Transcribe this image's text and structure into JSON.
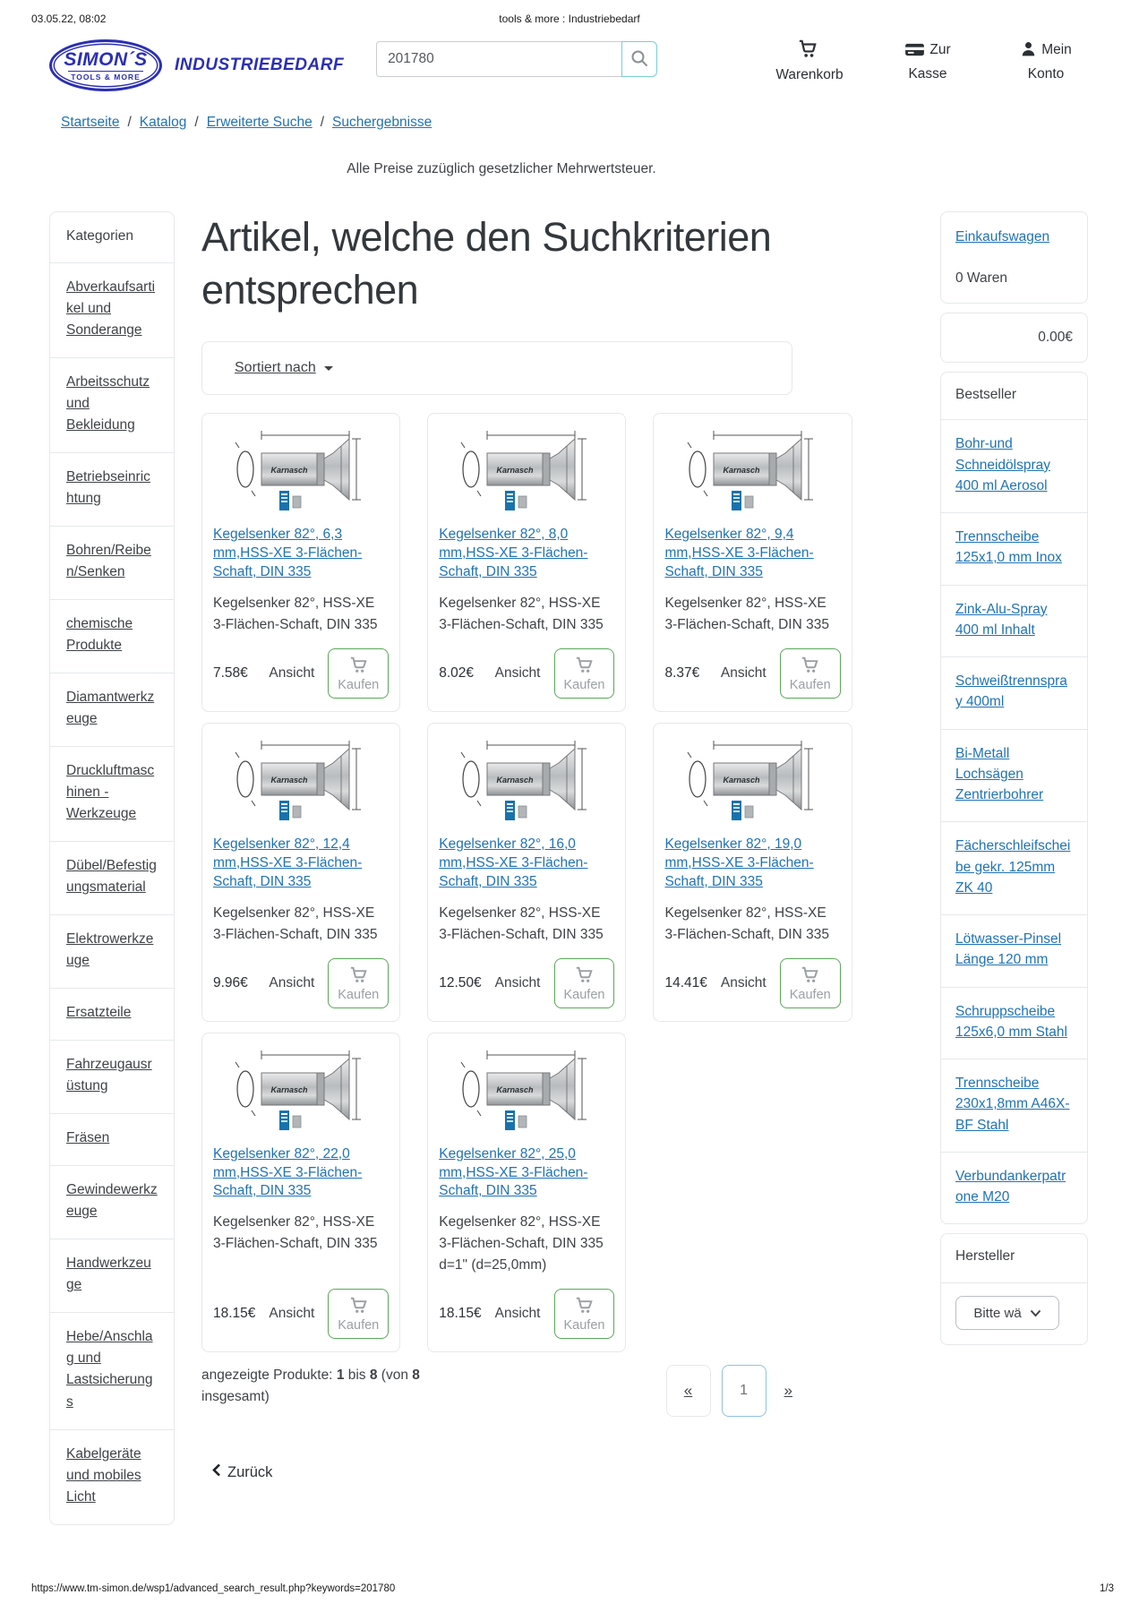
{
  "print": {
    "datetime": "03.05.22, 08:02",
    "doc_title": "tools & more : Industriebedarf",
    "url": "https://www.tm-simon.de/wsp1/advanced_search_result.php?keywords=201780",
    "page": "1/3"
  },
  "header": {
    "logo": {
      "name": "SIMON´S",
      "tagline": "TOOLS & MORE",
      "brand": "INDUSTRIEBEDARF"
    },
    "search": {
      "value": "201780"
    },
    "nav": {
      "cart": "Warenkorb",
      "checkout": "Zur Kasse",
      "account": "Mein Konto"
    }
  },
  "breadcrumb": {
    "separator": "/",
    "items": [
      "Startseite",
      "Katalog",
      "Erweiterte Suche",
      "Suchergebnisse"
    ]
  },
  "tax_notice": "Alle Preise zuzüglich gesetzlicher Mehrwertsteuer.",
  "categories": {
    "title": "Kategorien",
    "items": [
      "Abverkaufsartikel und Sonderange",
      "Arbeitsschutz und Bekleidung",
      "Betriebseinrichtung",
      "Bohren/Reiben/Senken",
      "chemische Produkte",
      "Diamantwerkzeuge",
      "Druckluftmaschinen - Werkzeuge",
      "Dübel/Befestigungsmaterial",
      "Elektrowerkzeuge",
      "Ersatzteile",
      "Fahrzeugausrüstung",
      "Fräsen",
      "Gewindewerkzeuge",
      "Handwerkzeuge",
      "Hebe/Anschlag und Lastsicherungs",
      "Kabelgeräte und mobiles Licht"
    ]
  },
  "main": {
    "title": "Artikel, welche den Suchkriterien entsprechen",
    "sort_label": "Sortiert nach",
    "view_label": "Ansicht",
    "buy_label": "Kaufen",
    "products": [
      {
        "title": "Kegelsenker 82°, 6,3 mm,HSS-XE 3-Flächen-Schaft, DIN 335",
        "description": "Kegelsenker 82°, HSS-XE 3-Flächen-Schaft, DIN 335",
        "price": "7.58€"
      },
      {
        "title": "Kegelsenker 82°, 8,0 mm,HSS-XE 3-Flächen-Schaft, DIN 335",
        "description": "Kegelsenker 82°, HSS-XE 3-Flächen-Schaft, DIN 335",
        "price": "8.02€"
      },
      {
        "title": "Kegelsenker 82°, 9,4 mm,HSS-XE 3-Flächen-Schaft, DIN 335",
        "description": "Kegelsenker 82°, HSS-XE 3-Flächen-Schaft, DIN 335",
        "price": "8.37€"
      },
      {
        "title": "Kegelsenker 82°, 12,4 mm,HSS-XE 3-Flächen-Schaft, DIN 335",
        "description": "Kegelsenker 82°, HSS-XE 3-Flächen-Schaft, DIN 335",
        "price": "9.96€"
      },
      {
        "title": "Kegelsenker 82°, 16,0 mm,HSS-XE 3-Flächen-Schaft, DIN 335",
        "description": "Kegelsenker 82°, HSS-XE 3-Flächen-Schaft, DIN 335",
        "price": "12.50€"
      },
      {
        "title": "Kegelsenker 82°, 19,0 mm,HSS-XE 3-Flächen-Schaft, DIN 335",
        "description": "Kegelsenker 82°, HSS-XE 3-Flächen-Schaft, DIN 335",
        "price": "14.41€"
      },
      {
        "title": "Kegelsenker 82°, 22,0 mm,HSS-XE 3-Flächen-Schaft, DIN 335",
        "description": "Kegelsenker 82°, HSS-XE 3-Flächen-Schaft, DIN 335",
        "price": "18.15€"
      },
      {
        "title": "Kegelsenker 82°, 25,0 mm,HSS-XE 3-Flächen-Schaft, DIN 335",
        "description": "Kegelsenker 82°, HSS-XE 3-Flächen-Schaft, DIN 335 d=1\" (d=25,0mm)",
        "price": "18.15€"
      }
    ],
    "results": {
      "prefix": "angezeigte Produkte: ",
      "from": "1",
      "bis": " bis ",
      "to": "8",
      "von": " (von ",
      "total": "8",
      "suffix": " insgesamt)"
    },
    "pagination": {
      "first": "«",
      "current": "1",
      "last": "»"
    },
    "back_label": "Zurück"
  },
  "cart_summary": {
    "title": "Einkaufswagen",
    "count": "0 Waren",
    "total": "0.00€"
  },
  "bestseller": {
    "title": "Bestseller",
    "items": [
      "Bohr-und Schneidölspray 400 ml Aerosol",
      "Trennscheibe 125x1,0 mm Inox",
      "Zink-Alu-Spray 400 ml Inhalt",
      "Schweißtrennspray 400ml",
      "Bi-Metall Lochsägen Zentrierbohrer",
      "Fächerschleifscheibe gekr. 125mm ZK 40",
      "Lötwasser-Pinsel Länge 120 mm",
      "Schruppscheibe 125x6,0 mm Stahl",
      "Trennscheibe 230x1,8mm A46X-BF Stahl",
      "Verbundankerpatrone M20"
    ]
  },
  "manufacturer": {
    "title": "Hersteller",
    "select_value": "Bitte wä"
  },
  "colors": {
    "link_blue": "#2173b4",
    "logo_blue": "#2b2fb3",
    "buy_green": "#5aa85a",
    "search_teal": "#79ccd5",
    "active_page_blue": "#8fc1e3"
  }
}
